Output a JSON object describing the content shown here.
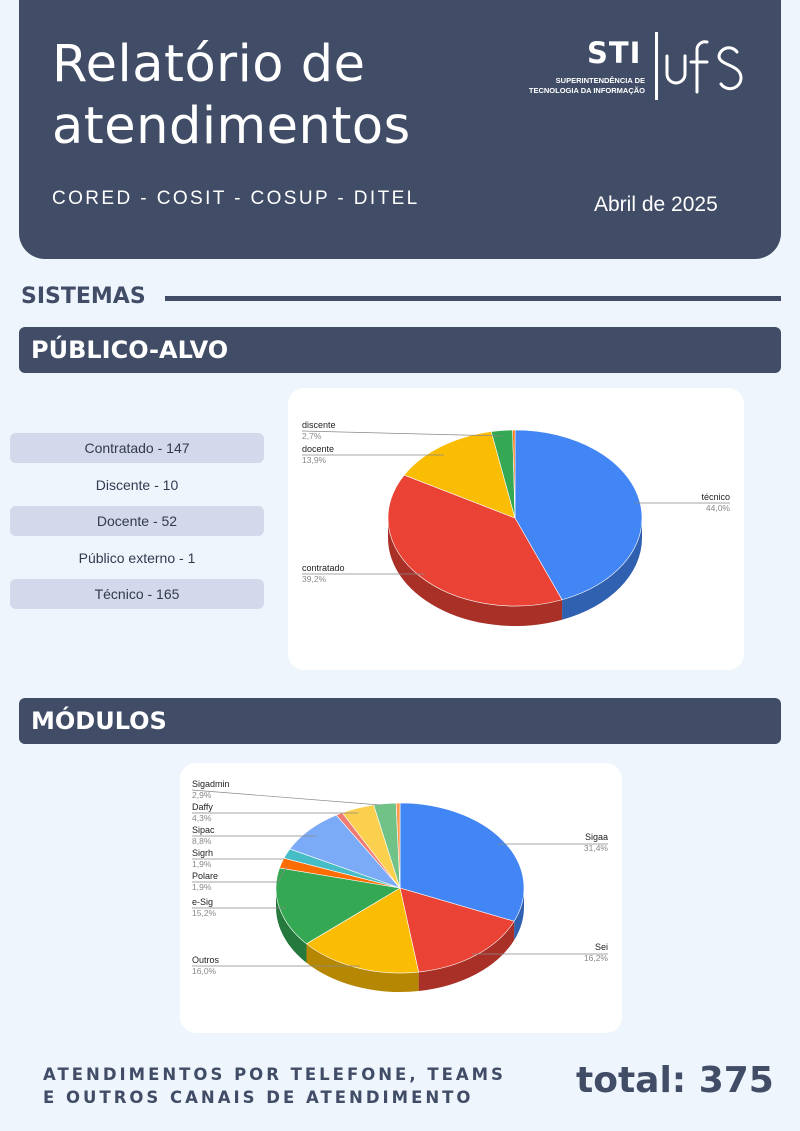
{
  "header": {
    "title_line1": "Relatório de",
    "title_line2": "atendimentos",
    "subtitle": "CORED - COSIT - COSUP - DITEL",
    "date": "Abril de 2025",
    "logo": {
      "sti": "STI",
      "sti_sub_line1": "SUPERINTENDÊNCIA DE",
      "sti_sub_line2": "TECNOLOGIA DA INFORMAÇÃO",
      "ufs": "ufs"
    }
  },
  "section_title": "SISTEMAS",
  "publico_alvo": {
    "heading": "PÚBLICO-ALVO",
    "list": [
      "Contratado - 147",
      "Discente - 10",
      "Docente - 52",
      "Público externo - 1",
      "Técnico - 165"
    ]
  },
  "modulos": {
    "heading": "MÓDULOS"
  },
  "footer": {
    "line1": "ATENDIMENTOS POR TELEFONE, TEAMS",
    "line2": "E OUTROS CANAIS DE ATENDIMENTO",
    "total": "total: 375"
  },
  "chart_data": [
    {
      "type": "pie",
      "style": "3d",
      "labels": [
        "técnico",
        "contratado",
        "docente",
        "discente",
        "público externo"
      ],
      "values": [
        44.0,
        39.2,
        13.9,
        2.7,
        0.3
      ],
      "percent_labels": [
        "44,0%",
        "39,2%",
        "13,9%",
        "2,7%",
        ""
      ],
      "colors": [
        "#4285f4",
        "#ea4335",
        "#fbbc04",
        "#34a853",
        "#ff6d01"
      ],
      "shown_labels": [
        "técnico",
        "contratado",
        "docente",
        "discente"
      ]
    },
    {
      "type": "pie",
      "style": "3d",
      "labels": [
        "Sigaa",
        "Sei",
        "Outros",
        "e-Sig",
        "Polare",
        "Sigrh",
        "Sipac",
        "",
        "Daffy",
        "Sigadmin",
        ""
      ],
      "values": [
        31.4,
        16.2,
        16.0,
        15.2,
        1.9,
        1.9,
        8.8,
        0.9,
        4.3,
        2.9,
        0.5
      ],
      "percent_labels": [
        "31,4%",
        "16,2%",
        "16,0%",
        "15,2%",
        "1,9%",
        "1,9%",
        "8,8%",
        "",
        "4,3%",
        "2,9%",
        ""
      ],
      "colors": [
        "#4285f4",
        "#ea4335",
        "#fbbc04",
        "#34a853",
        "#ff6d01",
        "#46bdc6",
        "#7baaf7",
        "#f07b72",
        "#fcd04f",
        "#71c287",
        "#ff994d"
      ]
    }
  ]
}
